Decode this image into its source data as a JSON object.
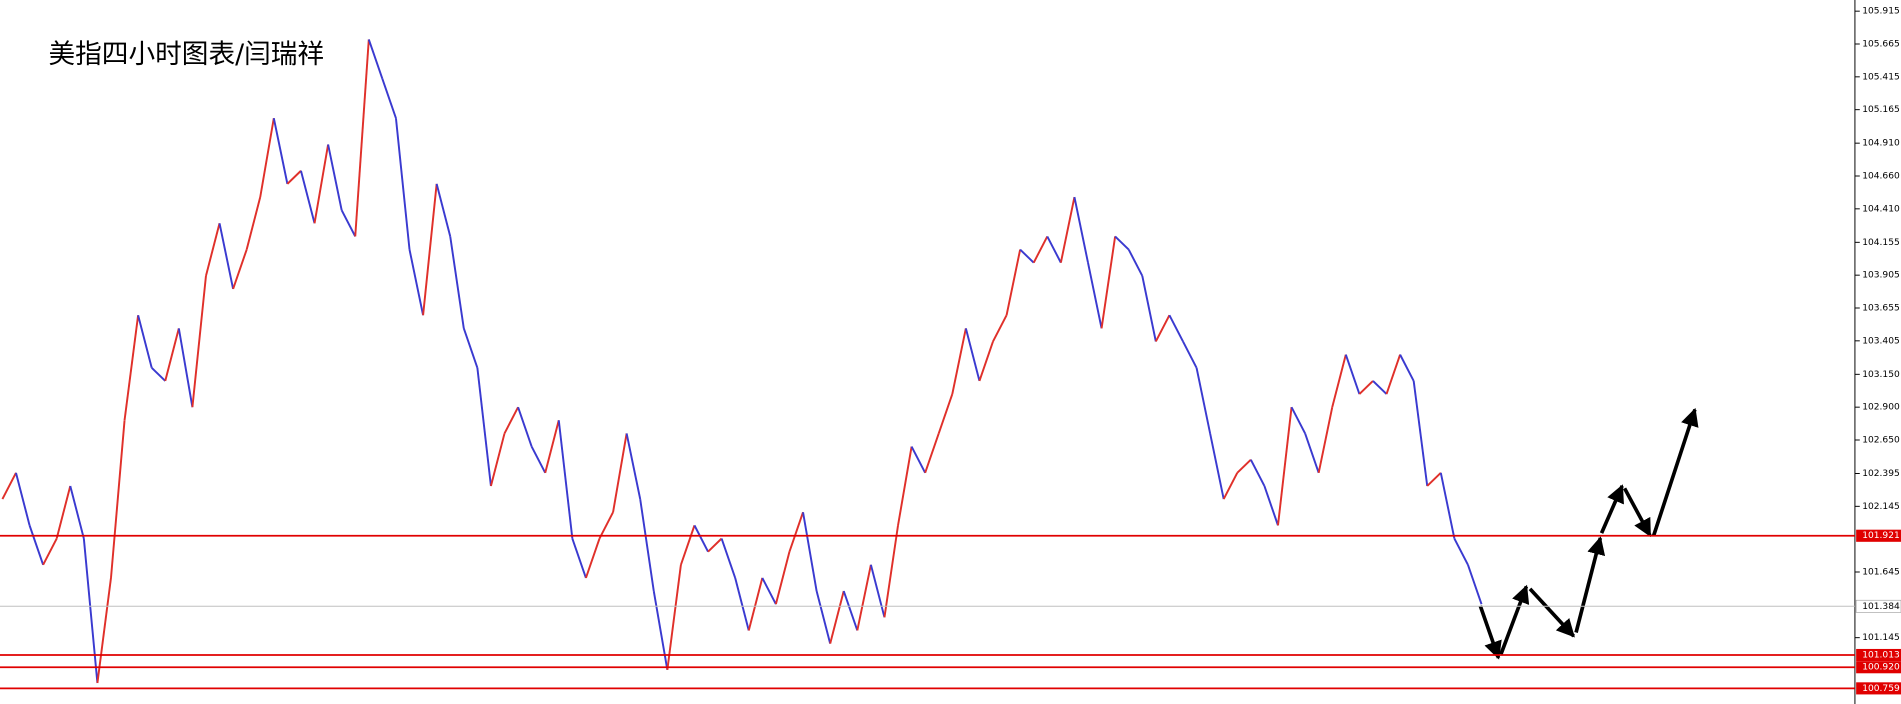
{
  "chart_data": {
    "type": "price-bars",
    "title": "美指四小时图表/闫瑞祥",
    "values": [
      102.2,
      102.4,
      102.0,
      101.7,
      101.9,
      102.3,
      101.9,
      100.8,
      101.6,
      102.8,
      103.6,
      103.2,
      103.1,
      103.5,
      102.9,
      103.9,
      104.3,
      103.8,
      104.1,
      104.5,
      105.1,
      104.6,
      104.7,
      104.3,
      104.9,
      104.4,
      104.2,
      105.7,
      105.4,
      105.1,
      104.1,
      103.6,
      104.6,
      104.2,
      103.5,
      103.2,
      102.3,
      102.7,
      102.9,
      102.6,
      102.4,
      102.8,
      101.9,
      101.6,
      101.9,
      102.1,
      102.7,
      102.2,
      101.5,
      100.9,
      101.7,
      102.0,
      101.8,
      101.9,
      101.6,
      101.2,
      101.6,
      101.4,
      101.8,
      102.1,
      101.5,
      101.1,
      101.5,
      101.2,
      101.7,
      101.3,
      102.0,
      102.6,
      102.4,
      102.7,
      103.0,
      103.5,
      103.1,
      103.4,
      103.6,
      104.1,
      104.0,
      104.2,
      104.0,
      104.5,
      104.0,
      103.5,
      104.2,
      104.1,
      103.9,
      103.4,
      103.6,
      103.4,
      103.2,
      102.7,
      102.2,
      102.4,
      102.5,
      102.3,
      102.0,
      102.9,
      102.7,
      102.4,
      102.9,
      103.3,
      103.0,
      103.1,
      103.0,
      103.3,
      103.1,
      102.3,
      102.4,
      101.9,
      101.7,
      101.4
    ],
    "up_color": "#e0302a",
    "down_color": "#3a3ad0",
    "ylim": [
      100.64,
      106.0
    ],
    "yticks": [
      105.915,
      105.665,
      105.415,
      105.165,
      {
        "value": 104.91,
        "label": "104.910"
      },
      {
        "value": 104.66,
        "label": "104.660"
      },
      {
        "value": 104.41,
        "label": "104.410"
      },
      104.155,
      103.905,
      103.655,
      103.405,
      {
        "value": 103.15,
        "label": "103.150"
      },
      {
        "value": 102.9,
        "label": "102.900"
      },
      {
        "value": 102.65,
        "label": "102.650"
      },
      102.395,
      102.145,
      101.645,
      101.145
    ],
    "levels": [
      101.921,
      101.013,
      {
        "value": 100.92,
        "label": "100.920"
      },
      100.759
    ],
    "level_color": "#e00000",
    "current_price": 101.384
  }
}
